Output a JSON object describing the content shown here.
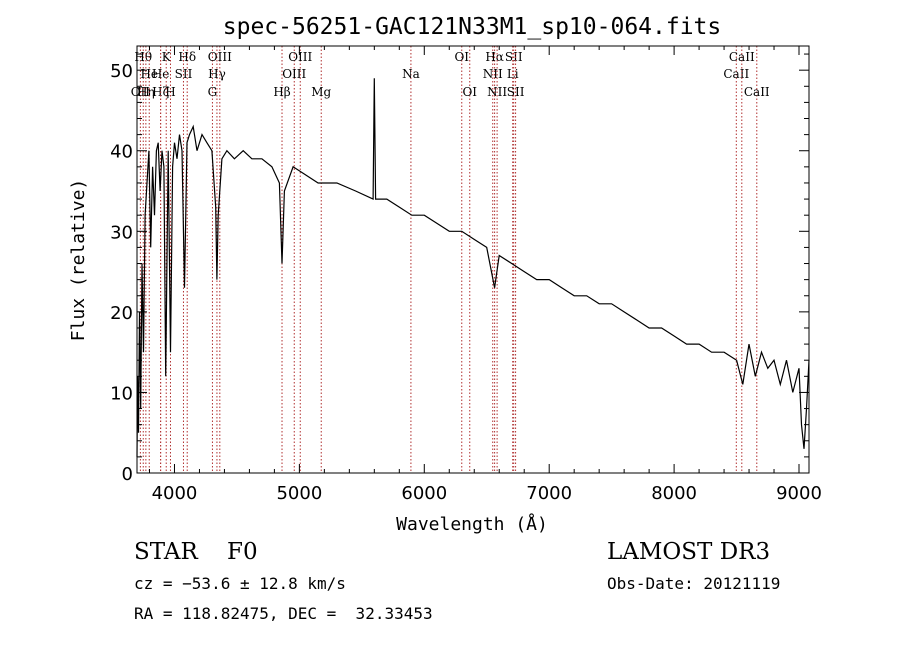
{
  "chart_data": {
    "type": "line",
    "title": "spec-56251-GAC121N33M1_sp10-064.fits",
    "xlabel": "Wavelength (Å)",
    "ylabel": "Flux (relative)",
    "xlim": [
      3700,
      9080
    ],
    "ylim": [
      0,
      53
    ],
    "xticks": [
      4000,
      5000,
      6000,
      7000,
      8000,
      9000
    ],
    "yticks": [
      0,
      10,
      20,
      30,
      40,
      50
    ],
    "grid": false,
    "series": [
      {
        "name": "flux",
        "color": "#000000",
        "x": [
          3700,
          3705,
          3712,
          3720,
          3730,
          3740,
          3752,
          3765,
          3780,
          3795,
          3810,
          3825,
          3840,
          3855,
          3870,
          3885,
          3900,
          3915,
          3930,
          3950,
          3968,
          3985,
          4000,
          4020,
          4040,
          4060,
          4080,
          4100,
          4120,
          4150,
          4180,
          4220,
          4260,
          4300,
          4330,
          4340,
          4350,
          4380,
          4420,
          4480,
          4550,
          4620,
          4700,
          4780,
          4840,
          4861,
          4880,
          4950,
          5050,
          5150,
          5300,
          5450,
          5590,
          5600,
          5610,
          5700,
          5800,
          5900,
          6000,
          6100,
          6200,
          6300,
          6400,
          6500,
          6563,
          6600,
          6700,
          6800,
          6900,
          7000,
          7100,
          7200,
          7300,
          7400,
          7500,
          7600,
          7700,
          7800,
          7900,
          8000,
          8100,
          8200,
          8300,
          8400,
          8500,
          8550,
          8600,
          8650,
          8700,
          8750,
          8800,
          8850,
          8900,
          8950,
          9000,
          9020,
          9040,
          9060,
          9080
        ],
        "values": [
          2,
          12,
          5,
          20,
          8,
          26,
          15,
          32,
          36,
          40,
          28,
          38,
          32,
          40,
          41,
          35,
          40,
          38,
          12,
          40,
          15,
          38,
          41,
          39,
          42,
          40,
          23,
          41,
          42,
          43,
          40,
          42,
          41,
          40,
          33,
          24,
          32,
          39,
          40,
          39,
          40,
          39,
          39,
          38,
          36,
          26,
          35,
          38,
          37,
          36,
          36,
          35,
          34,
          49,
          34,
          34,
          33,
          32,
          32,
          31,
          30,
          30,
          29,
          28,
          23,
          27,
          26,
          25,
          24,
          24,
          23,
          22,
          22,
          21,
          21,
          20,
          19,
          18,
          18,
          17,
          16,
          16,
          15,
          15,
          14,
          11,
          16,
          12,
          15,
          13,
          14,
          11,
          14,
          10,
          13,
          6,
          3,
          8,
          14
        ]
      }
    ],
    "lines": [
      {
        "wavelength": 3727,
        "label": "OII",
        "row": 3
      },
      {
        "wavelength": 3750,
        "label": "Hθ",
        "row": 1
      },
      {
        "wavelength": 3771,
        "label": "Hη",
        "row": 3
      },
      {
        "wavelength": 3798,
        "label": "He",
        "row": 2
      },
      {
        "wavelength": 3889,
        "label": "Hζ",
        "row": 3
      },
      {
        "wavelength": 3889,
        "label": "He",
        "row": 2
      },
      {
        "wavelength": 3934,
        "label": "K",
        "row": 1
      },
      {
        "wavelength": 3968,
        "label": "H",
        "row": 3
      },
      {
        "wavelength": 4072,
        "label": "SII",
        "row": 2
      },
      {
        "wavelength": 4102,
        "label": "Hδ",
        "row": 1
      },
      {
        "wavelength": 4304,
        "label": "G",
        "row": 3
      },
      {
        "wavelength": 4340,
        "label": "Hγ",
        "row": 2
      },
      {
        "wavelength": 4363,
        "label": "OIII",
        "row": 1
      },
      {
        "wavelength": 4861,
        "label": "Hβ",
        "row": 3
      },
      {
        "wavelength": 4959,
        "label": "OIII",
        "row": 2
      },
      {
        "wavelength": 5007,
        "label": "OIII",
        "row": 1
      },
      {
        "wavelength": 5175,
        "label": "Mg",
        "row": 3
      },
      {
        "wavelength": 5893,
        "label": "Na",
        "row": 2
      },
      {
        "wavelength": 6300,
        "label": "OI",
        "row": 1
      },
      {
        "wavelength": 6364,
        "label": "OI",
        "row": 3
      },
      {
        "wavelength": 6548,
        "label": "NII",
        "row": 2
      },
      {
        "wavelength": 6563,
        "label": "Hα",
        "row": 1
      },
      {
        "wavelength": 6583,
        "label": "NII",
        "row": 3
      },
      {
        "wavelength": 6708,
        "label": "Li",
        "row": 2
      },
      {
        "wavelength": 6716,
        "label": "SII",
        "row": 1
      },
      {
        "wavelength": 6731,
        "label": "SII",
        "row": 3
      },
      {
        "wavelength": 8498,
        "label": "CaII",
        "row": 2
      },
      {
        "wavelength": 8542,
        "label": "CaII",
        "row": 1
      },
      {
        "wavelength": 8662,
        "label": "CaII",
        "row": 3
      }
    ]
  },
  "info": {
    "class_line": "STAR    F0",
    "survey": "LAMOST DR3",
    "redshift": "cz = −53.6 ± 12.8 km/s",
    "obs_date": "Obs-Date: 20121119",
    "coords": "RA = 118.82475, DEC =  32.33453"
  },
  "colors": {
    "line": "#000000",
    "marker": "#b03030",
    "text": "#000000"
  }
}
